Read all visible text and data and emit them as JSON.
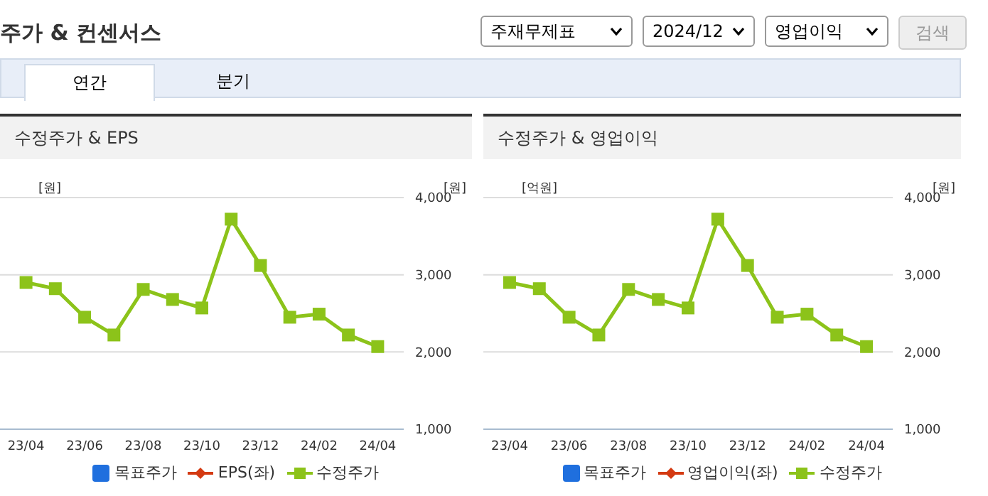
{
  "chart_data": [
    {
      "type": "other",
      "title": "주가 & 컨센서스",
      "annotations": [
        "주재무제표",
        "2024/12",
        "영업이익",
        "검색",
        "연간",
        "분기"
      ]
    },
    {
      "type": "line",
      "title": "수정주가 & EPS",
      "ylabel": "[원]",
      "y2label": "[원]",
      "categories": [
        "23/04",
        null,
        "23/06",
        null,
        "23/08",
        null,
        "23/10",
        null,
        "23/12",
        null,
        "24/02",
        null,
        "24/04"
      ],
      "series": [
        {
          "name": "목표주가",
          "type": "bar",
          "color": "#1f6fde",
          "values": [
            null,
            null,
            null,
            null,
            null,
            null,
            null,
            null,
            null,
            null,
            null,
            null,
            null
          ]
        },
        {
          "name": "EPS(좌)",
          "type": "line",
          "marker": "diamond",
          "color": "#d43a12",
          "values": [
            null,
            null,
            null,
            null,
            null,
            null,
            null,
            null,
            null,
            null,
            null,
            null,
            null
          ]
        },
        {
          "name": "수정주가",
          "type": "line",
          "marker": "square",
          "axis": "y2",
          "color": "#8cc31a",
          "values": [
            2900,
            2820,
            2450,
            2220,
            2810,
            2680,
            2570,
            3720,
            3120,
            2450,
            2490,
            2220,
            2070
          ]
        }
      ],
      "y2lim": [
        1000,
        4000
      ],
      "y2ticks": [
        {
          "value": 1000,
          "label": "1,000"
        },
        {
          "value": 2000,
          "label": "2,000"
        },
        {
          "value": 3000,
          "label": "3,000"
        },
        {
          "value": 4000,
          "label": "4,000"
        }
      ],
      "grid": "y",
      "legend": "bottom"
    },
    {
      "type": "line",
      "title": "수정주가 & 영업이익",
      "ylabel": "[억원]",
      "y2label": "[원]",
      "categories": [
        "23/04",
        null,
        "23/06",
        null,
        "23/08",
        null,
        "23/10",
        null,
        "23/12",
        null,
        "24/02",
        null,
        "24/04"
      ],
      "series": [
        {
          "name": "목표주가",
          "type": "bar",
          "color": "#1f6fde",
          "values": [
            null,
            null,
            null,
            null,
            null,
            null,
            null,
            null,
            null,
            null,
            null,
            null,
            null
          ]
        },
        {
          "name": "영업이익(좌)",
          "type": "line",
          "marker": "diamond",
          "color": "#d43a12",
          "values": [
            null,
            null,
            null,
            null,
            null,
            null,
            null,
            null,
            null,
            null,
            null,
            null,
            null
          ]
        },
        {
          "name": "수정주가",
          "type": "line",
          "marker": "square",
          "axis": "y2",
          "color": "#8cc31a",
          "values": [
            2900,
            2820,
            2450,
            2220,
            2810,
            2680,
            2570,
            3720,
            3120,
            2450,
            2490,
            2220,
            2070
          ]
        }
      ],
      "y2lim": [
        1000,
        4000
      ],
      "y2ticks": [
        {
          "value": 1000,
          "label": "1,000"
        },
        {
          "value": 2000,
          "label": "2,000"
        },
        {
          "value": 3000,
          "label": "3,000"
        },
        {
          "value": 4000,
          "label": "4,000"
        }
      ],
      "grid": "y",
      "legend": "bottom"
    }
  ]
}
